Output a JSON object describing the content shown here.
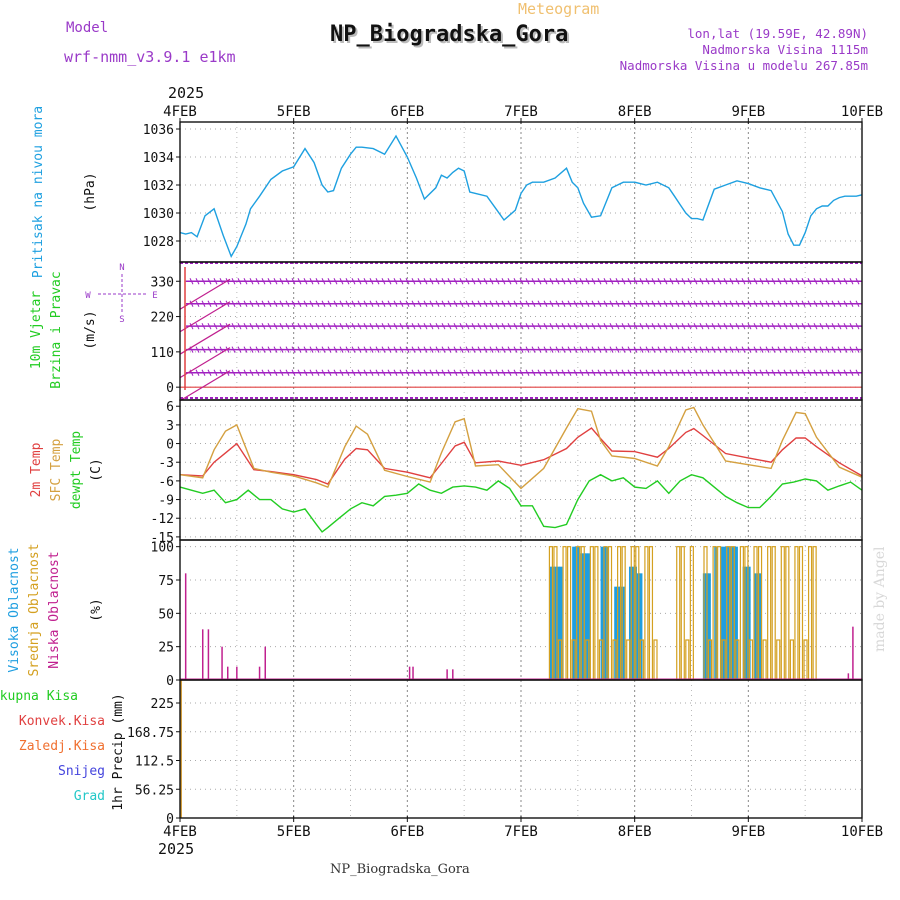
{
  "header": {
    "label_model": "Model",
    "model_name": "wrf-nmm_v3.9.1 e1km",
    "app_title": "Meteogram",
    "station": "NP_Biogradska_Gora",
    "lonlat": "lon,lat (19.59E, 42.89N)",
    "elevation": "Nadmorska Visina 1115m",
    "model_elevation": "Nadmorska Visina u modelu 267.85m",
    "year": "2025",
    "footer_station": "NP_Biogradska_Gora",
    "credit": "made by Angel"
  },
  "colors": {
    "pressure": "#1ea0e0",
    "temp2m": "#e04040",
    "sfc": "#d4a040",
    "dew": "#22cc22",
    "wind": "#a020c0",
    "high_cloud": "#1e9ee0",
    "mid_cloud": "#d4a020",
    "low_cloud": "#c0208f",
    "violet": "#9a3ac8",
    "orange_title": "#f0c070",
    "grid": "#999999"
  },
  "time_axis": {
    "labels": [
      "4FEB",
      "5FEB",
      "6FEB",
      "7FEB",
      "8FEB",
      "9FEB",
      "10FEB"
    ],
    "range_days": [
      0,
      6
    ]
  },
  "chart_data": [
    {
      "type": "line",
      "id": "pressure",
      "ylabel_main": "Pritisak na nivou mora",
      "unit": "(hPa)",
      "yticks": [
        "1028",
        "1030",
        "1032",
        "1034",
        "1036"
      ],
      "ylim": [
        1026.5,
        1036.5
      ],
      "series": [
        {
          "key": "pressure",
          "color": "#1ea0e0",
          "x": [
            0,
            0.05,
            0.1,
            0.15,
            0.22,
            0.3,
            0.38,
            0.45,
            0.5,
            0.58,
            0.62,
            0.7,
            0.8,
            0.9,
            1.0,
            1.1,
            1.18,
            1.25,
            1.3,
            1.35,
            1.42,
            1.5,
            1.55,
            1.6,
            1.7,
            1.8,
            1.9,
            2.0,
            2.08,
            2.15,
            2.25,
            2.3,
            2.35,
            2.4,
            2.45,
            2.5,
            2.55,
            2.6,
            2.7,
            2.78,
            2.85,
            2.95,
            3.0,
            3.05,
            3.1,
            3.2,
            3.3,
            3.4,
            3.45,
            3.5,
            3.55,
            3.62,
            3.7,
            3.8,
            3.9,
            4.0,
            4.1,
            4.2,
            4.25,
            4.3,
            4.35,
            4.4,
            4.45,
            4.5,
            4.55,
            4.6,
            4.7,
            4.8,
            4.9,
            5.0,
            5.1,
            5.2,
            5.3,
            5.35,
            5.4,
            5.45,
            5.5,
            5.55,
            5.6,
            5.65,
            5.7,
            5.75,
            5.8,
            5.85,
            5.9,
            5.95,
            6.0
          ],
          "y": [
            1028.6,
            1028.5,
            1028.6,
            1028.3,
            1029.8,
            1030.3,
            1028.4,
            1026.9,
            1027.6,
            1029.2,
            1030.3,
            1031.2,
            1032.4,
            1033.0,
            1033.3,
            1034.6,
            1033.6,
            1032.0,
            1031.5,
            1031.6,
            1033.2,
            1034.2,
            1034.7,
            1034.7,
            1034.6,
            1034.2,
            1035.5,
            1034.0,
            1032.5,
            1031.0,
            1031.8,
            1032.7,
            1032.5,
            1032.9,
            1033.2,
            1033.0,
            1031.5,
            1031.4,
            1031.2,
            1030.3,
            1029.5,
            1030.2,
            1031.4,
            1032.0,
            1032.2,
            1032.2,
            1032.5,
            1033.2,
            1032.2,
            1031.8,
            1030.7,
            1029.7,
            1029.8,
            1031.8,
            1032.2,
            1032.2,
            1032.0,
            1032.2,
            1032.0,
            1031.8,
            1031.2,
            1030.6,
            1030.0,
            1029.6,
            1029.6,
            1029.5,
            1031.7,
            1032.0,
            1032.3,
            1032.1,
            1031.8,
            1031.6,
            1030.1,
            1028.5,
            1027.7,
            1027.7,
            1028.6,
            1029.8,
            1030.3,
            1030.5,
            1030.5,
            1030.9,
            1031.1,
            1031.2,
            1031.2,
            1031.2,
            1031.3
          ]
        }
      ]
    },
    {
      "type": "barbs",
      "id": "wind",
      "ylabel_main": "10m Vjetar",
      "ylabel_sub": "Brzina i Pravac",
      "unit": "(m/s)",
      "yticks": [
        "0",
        "110",
        "220",
        "330"
      ],
      "ylim": [
        -40,
        390
      ],
      "compass": {
        "n": "N",
        "w": "W",
        "e": "E",
        "s": "S"
      },
      "direction_rows": [
        45,
        117,
        190,
        260,
        330
      ]
    },
    {
      "type": "line",
      "id": "temperature",
      "ylabel_t2m": "2m Temp",
      "ylabel_sfc": "SFC Temp",
      "ylabel_dew": "dewpt Temp",
      "unit": "(C)",
      "yticks": [
        "6",
        "3",
        "0",
        "-3",
        "-6",
        "-9",
        "-12",
        "-15"
      ],
      "ylim": [
        -15.5,
        7
      ],
      "series": [
        {
          "key": "t2m",
          "color": "#e04040",
          "x": [
            0,
            0.2,
            0.3,
            0.4,
            0.5,
            0.65,
            0.8,
            1.0,
            1.2,
            1.3,
            1.45,
            1.55,
            1.65,
            1.8,
            2.0,
            2.2,
            2.3,
            2.42,
            2.5,
            2.6,
            2.8,
            3.0,
            3.2,
            3.4,
            3.5,
            3.62,
            3.7,
            3.8,
            4.0,
            4.2,
            4.3,
            4.45,
            4.52,
            4.6,
            4.8,
            5.0,
            5.2,
            5.3,
            5.42,
            5.5,
            5.6,
            5.8,
            6.0
          ],
          "y": [
            -5,
            -5.2,
            -3.0,
            -1.5,
            0,
            -4.2,
            -4.5,
            -5.0,
            -5.8,
            -6.5,
            -2.5,
            -0.8,
            -1.0,
            -4.0,
            -4.6,
            -5.5,
            -3.2,
            -0.4,
            0.2,
            -3.1,
            -2.8,
            -3.5,
            -2.6,
            -0.8,
            1.0,
            2.5,
            0.8,
            -1.2,
            -1.3,
            -2.2,
            -0.8,
            1.8,
            2.4,
            1.3,
            -1.6,
            -2.3,
            -3.0,
            -1.0,
            0.9,
            0.9,
            -0.5,
            -3.1,
            -5.2
          ]
        },
        {
          "key": "sfc",
          "color": "#d4a040",
          "x": [
            0,
            0.2,
            0.3,
            0.4,
            0.5,
            0.65,
            0.8,
            1.0,
            1.2,
            1.3,
            1.45,
            1.55,
            1.65,
            1.8,
            2.0,
            2.2,
            2.3,
            2.42,
            2.5,
            2.6,
            2.8,
            3.0,
            3.2,
            3.4,
            3.5,
            3.62,
            3.7,
            3.8,
            4.0,
            4.2,
            4.3,
            4.45,
            4.52,
            4.6,
            4.8,
            5.0,
            5.2,
            5.3,
            5.42,
            5.5,
            5.6,
            5.8,
            6.0
          ],
          "y": [
            -5,
            -5.5,
            -1.0,
            2.0,
            3.0,
            -4.0,
            -4.6,
            -5.2,
            -6.3,
            -7.0,
            -0.5,
            2.8,
            1.5,
            -4.3,
            -5.3,
            -6.2,
            -1.5,
            3.5,
            4.0,
            -3.6,
            -3.4,
            -7.2,
            -4.0,
            2.5,
            5.6,
            5.2,
            0.5,
            -2.0,
            -2.4,
            -3.6,
            -0.5,
            5.4,
            5.8,
            3.0,
            -2.8,
            -3.4,
            -4.0,
            0.5,
            5.0,
            4.8,
            1.0,
            -3.8,
            -5.4
          ]
        },
        {
          "key": "dew",
          "color": "#22cc22",
          "x": [
            0,
            0.1,
            0.2,
            0.3,
            0.4,
            0.5,
            0.6,
            0.7,
            0.8,
            0.9,
            1.0,
            1.1,
            1.2,
            1.25,
            1.3,
            1.4,
            1.5,
            1.6,
            1.7,
            1.8,
            1.9,
            2.0,
            2.1,
            2.2,
            2.3,
            2.4,
            2.5,
            2.6,
            2.7,
            2.8,
            2.9,
            3.0,
            3.1,
            3.2,
            3.3,
            3.4,
            3.5,
            3.6,
            3.7,
            3.8,
            3.9,
            4.0,
            4.1,
            4.2,
            4.3,
            4.4,
            4.5,
            4.6,
            4.7,
            4.8,
            4.9,
            5.0,
            5.1,
            5.2,
            5.3,
            5.4,
            5.5,
            5.6,
            5.7,
            5.8,
            5.9,
            6.0
          ],
          "y": [
            -7.0,
            -7.5,
            -8.0,
            -7.5,
            -9.5,
            -9.0,
            -7.5,
            -9.0,
            -9.0,
            -10.5,
            -11.0,
            -10.5,
            -13.0,
            -14.2,
            -13.5,
            -12.0,
            -10.5,
            -9.5,
            -10.0,
            -8.5,
            -8.3,
            -8.0,
            -6.5,
            -7.5,
            -8.0,
            -7.0,
            -6.8,
            -7.0,
            -7.5,
            -6.0,
            -7.2,
            -10.0,
            -10.0,
            -13.3,
            -13.5,
            -13.0,
            -9.0,
            -6.0,
            -5.0,
            -6.0,
            -5.5,
            -7.0,
            -7.2,
            -6.0,
            -8.0,
            -6.0,
            -5.0,
            -5.5,
            -7.0,
            -8.5,
            -9.5,
            -10.3,
            -10.3,
            -8.5,
            -6.5,
            -6.2,
            -5.7,
            -6.0,
            -7.5,
            -6.8,
            -6.2,
            -7.5
          ]
        }
      ]
    },
    {
      "type": "bar",
      "id": "cloud",
      "ylabel_high": "Visoka Oblacnost",
      "ylabel_mid": "Srednja Oblacnost",
      "ylabel_low": "Niska Oblacnost",
      "unit": "(%)",
      "yticks": [
        "0",
        "25",
        "50",
        "75",
        "100"
      ],
      "ylim": [
        0,
        105
      ],
      "low": {
        "x": [
          0.05,
          0.2,
          0.25,
          0.37,
          0.42,
          0.5,
          0.7,
          0.75,
          2.02,
          2.05,
          2.35,
          2.4,
          5.88,
          5.92
        ],
        "y": [
          80,
          38,
          38,
          25,
          10,
          10,
          10,
          25,
          10,
          10,
          8,
          8,
          5,
          40
        ]
      },
      "high_blocks": [
        [
          3.25,
          3.35,
          85
        ],
        [
          3.45,
          3.5,
          100
        ],
        [
          3.52,
          3.6,
          95
        ],
        [
          3.7,
          3.75,
          100
        ],
        [
          3.82,
          3.9,
          70
        ],
        [
          3.95,
          4.0,
          85
        ],
        [
          4.02,
          4.06,
          80
        ],
        [
          4.6,
          4.65,
          80
        ],
        [
          4.7,
          4.72,
          100
        ],
        [
          4.75,
          4.9,
          100
        ],
        [
          4.95,
          5.0,
          85
        ],
        [
          5.05,
          5.1,
          80
        ]
      ],
      "mid_range": [
        3.25,
        5.6
      ],
      "mid_gaps": [
        [
          4.2,
          4.35
        ],
        [
          4.5,
          4.6
        ]
      ]
    },
    {
      "type": "bar",
      "id": "precip",
      "legend_total": "Ukupna Kisa",
      "legend_conv": "Konvek.Kisa",
      "legend_frozen": "Zaledj.Kisa",
      "legend_snow": "Snijeg",
      "legend_hail": "Grad",
      "ylabel": "1hr Precip (mm)",
      "yticks": [
        "0",
        "56.25",
        "112.5",
        "168.75",
        "225"
      ],
      "ylim": [
        0,
        270
      ],
      "spike": {
        "x": 0,
        "y": 270
      }
    }
  ]
}
